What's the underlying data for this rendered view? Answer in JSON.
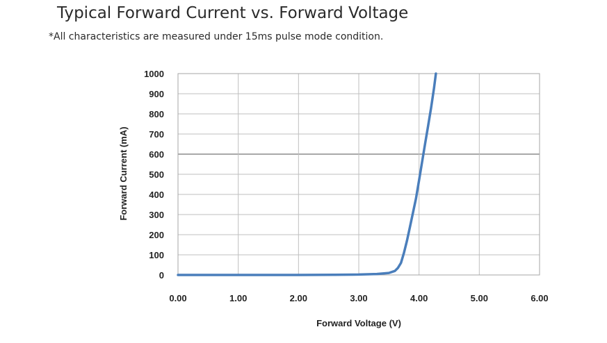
{
  "page": {
    "title": "Typical Forward Current vs. Forward Voltage",
    "subtitle": "*All characteristics are measured under 15ms pulse mode condition."
  },
  "chart_data": {
    "type": "line",
    "title": "",
    "xlabel": "Forward Voltage  (V)",
    "ylabel": "Forward Current (mA)",
    "xlim": [
      0,
      6
    ],
    "ylim": [
      0,
      1000
    ],
    "x_ticks": [
      "0.00",
      "1.00",
      "2.00",
      "3.00",
      "4.00",
      "5.00",
      "6.00"
    ],
    "y_ticks": [
      "0",
      "100",
      "200",
      "300",
      "400",
      "500",
      "600",
      "700",
      "800",
      "900",
      "1000"
    ],
    "grid": true,
    "series": [
      {
        "name": "",
        "color": "#4a7ebb",
        "x": [
          0.0,
          1.0,
          2.0,
          2.6,
          3.0,
          3.3,
          3.5,
          3.6,
          3.65,
          3.7,
          3.75,
          3.8,
          3.85,
          3.9,
          3.95,
          4.0,
          4.05,
          4.1,
          4.15,
          4.2,
          4.25,
          4.28
        ],
        "y": [
          0,
          0,
          0,
          1,
          2,
          5,
          10,
          20,
          35,
          60,
          110,
          170,
          240,
          310,
          380,
          470,
          560,
          650,
          740,
          830,
          930,
          1000
        ]
      }
    ]
  }
}
